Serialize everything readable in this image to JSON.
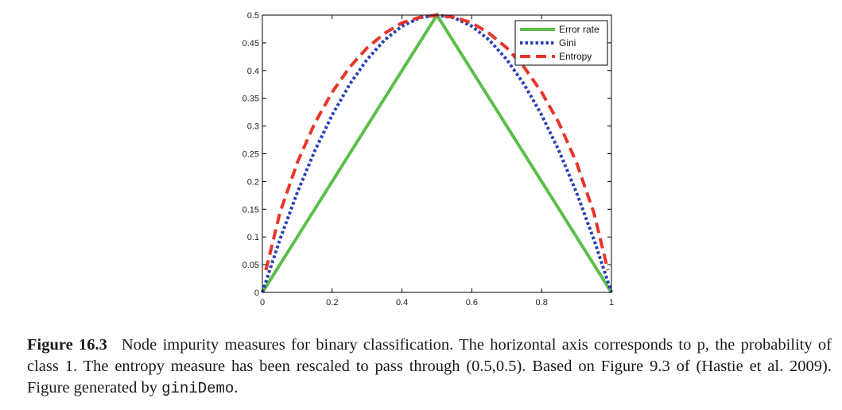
{
  "chart_data": {
    "type": "line",
    "x_ticks": [
      "0",
      "0.2",
      "0.4",
      "0.6",
      "0.8",
      "1"
    ],
    "y_ticks": [
      "0",
      "0.05",
      "0.1",
      "0.15",
      "0.2",
      "0.25",
      "0.3",
      "0.35",
      "0.4",
      "0.45",
      "0.5"
    ],
    "xlim": [
      0,
      1
    ],
    "ylim": [
      0,
      0.5
    ],
    "grid": false,
    "legend_position": "top-right",
    "series": [
      {
        "name": "Error rate",
        "color": "#5cbf4a",
        "style": "solid",
        "x": [
          0,
          0.5,
          1
        ],
        "y": [
          0,
          0.5,
          0
        ]
      },
      {
        "name": "Gini",
        "color": "#2a40b8",
        "style": "dotted",
        "x": [
          0,
          0.05,
          0.1,
          0.15,
          0.2,
          0.25,
          0.3,
          0.35,
          0.4,
          0.45,
          0.5,
          0.55,
          0.6,
          0.65,
          0.7,
          0.75,
          0.8,
          0.85,
          0.9,
          0.95,
          1
        ],
        "y": [
          0,
          0.095,
          0.18,
          0.255,
          0.32,
          0.375,
          0.42,
          0.455,
          0.48,
          0.495,
          0.5,
          0.495,
          0.48,
          0.455,
          0.42,
          0.375,
          0.32,
          0.255,
          0.18,
          0.095,
          0
        ]
      },
      {
        "name": "Entropy",
        "color": "#e8352a",
        "style": "dashed",
        "x": [
          0.01,
          0.05,
          0.1,
          0.15,
          0.2,
          0.25,
          0.3,
          0.35,
          0.4,
          0.45,
          0.5,
          0.55,
          0.6,
          0.65,
          0.7,
          0.75,
          0.8,
          0.85,
          0.9,
          0.95,
          0.99
        ],
        "y": [
          0.04,
          0.143,
          0.234,
          0.305,
          0.361,
          0.406,
          0.441,
          0.467,
          0.486,
          0.496,
          0.5,
          0.496,
          0.486,
          0.467,
          0.441,
          0.406,
          0.361,
          0.305,
          0.234,
          0.143,
          0.04
        ]
      }
    ]
  },
  "caption": {
    "label": "Figure 16.3",
    "text": "Node impurity measures for binary classification. The horizontal axis corresponds to p, the probability of class 1. The entropy measure has been rescaled to pass through (0.5,0.5). Based on Figure 9.3 of (Hastie et al. 2009). Figure generated by",
    "code": "giniDemo",
    "end": "."
  }
}
